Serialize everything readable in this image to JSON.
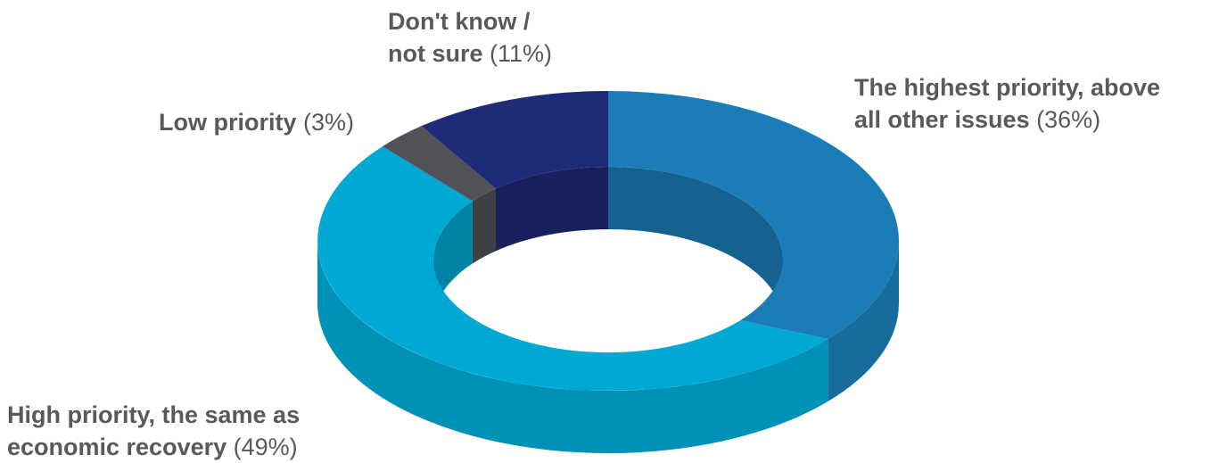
{
  "chart_data": {
    "type": "pie",
    "style": "3d-donut",
    "title": "",
    "slices": [
      {
        "label_lines": [
          "The highest priority, above",
          "all other issues"
        ],
        "percent_text": "(36%)",
        "value": 36,
        "color": "#1b7db8"
      },
      {
        "label_lines": [
          "High priority, the same as",
          "economic recovery"
        ],
        "percent_text": "(49%)",
        "value": 49,
        "color": "#00a9d4"
      },
      {
        "label_lines": [
          "Low priority"
        ],
        "percent_text": "(3%)",
        "value": 3,
        "color": "#515257"
      },
      {
        "label_lines": [
          "Don't know /",
          "not sure"
        ],
        "percent_text": "(11%)",
        "value": 11,
        "color": "#1f2a78"
      }
    ],
    "label_color": "#58595b"
  }
}
